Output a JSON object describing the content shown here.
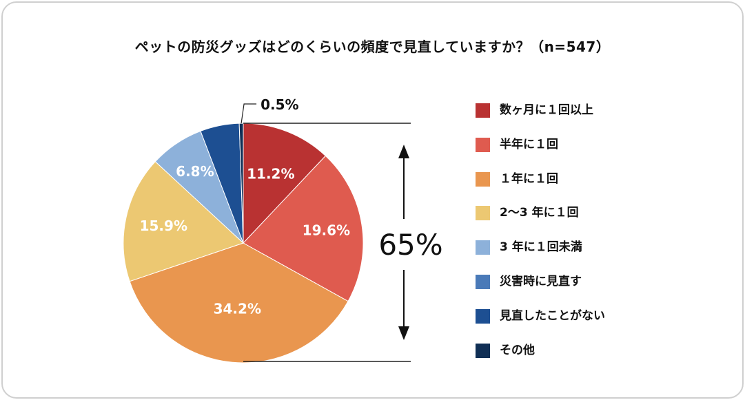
{
  "title": "ペットの防災グッズはどのくらいの頻度で見直していますか？（n=547）",
  "chart_data": {
    "type": "pie",
    "title": "ペットの防災グッズはどのくらいの頻度で見直していますか？（n=547）",
    "n": 547,
    "slices": [
      {
        "label": "数ヶ月に１回以上",
        "value": 11.2,
        "value_label": "11.2%",
        "color": "#b93232"
      },
      {
        "label": "半年に１回",
        "value": 19.6,
        "value_label": "19.6%",
        "color": "#df5b4f"
      },
      {
        "label": "１年に１回",
        "value": 34.2,
        "value_label": "34.2%",
        "color": "#e9964f"
      },
      {
        "label": "2〜3 年に１回",
        "value": 15.9,
        "value_label": "15.9%",
        "color": "#ecc872"
      },
      {
        "label": "3 年に１回未満",
        "value": 6.8,
        "value_label": "6.8%",
        "color": "#8db1da"
      },
      {
        "label": "災害時に見直す",
        "value": 0,
        "value_label": "",
        "color": "#4a7ab8"
      },
      {
        "label": "見直したことがない",
        "value": 4.9,
        "value_label": "",
        "color": "#1d4f92"
      },
      {
        "label": "その他",
        "value": 0.5,
        "value_label": "0.5%",
        "color": "#102f55"
      }
    ],
    "annotation": "65%",
    "legend_position": "right"
  }
}
